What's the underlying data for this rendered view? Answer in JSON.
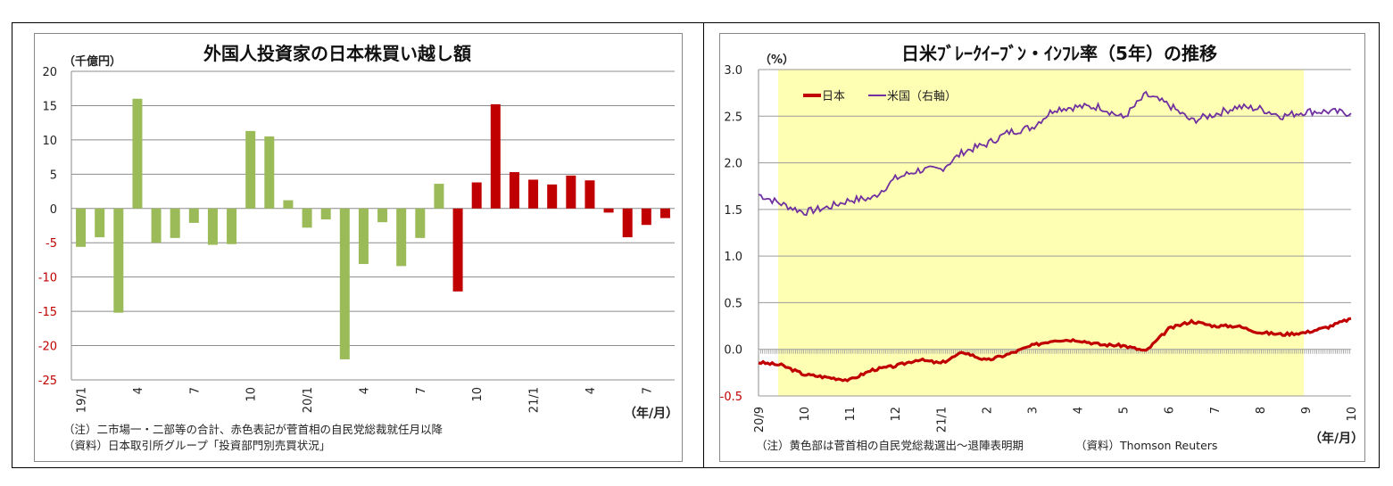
{
  "chart_data": [
    {
      "type": "bar",
      "title": "外国人投資家の日本株買い越し額",
      "ylabel": "（千億円）",
      "xlabel": "（年/月）",
      "ylim": [
        -25,
        20
      ],
      "yticks": [
        20,
        15,
        10,
        5,
        0,
        -5,
        -10,
        -15,
        -20,
        -25
      ],
      "grid": true,
      "xtick_labels": [
        "19/1",
        "4",
        "7",
        "10",
        "20/1",
        "4",
        "7",
        "10",
        "21/1",
        "4",
        "7"
      ],
      "categories": [
        "19/1",
        "19/2",
        "19/3",
        "19/4",
        "19/5",
        "19/6",
        "19/7",
        "19/8",
        "19/9",
        "19/10",
        "19/11",
        "19/12",
        "20/1",
        "20/2",
        "20/3",
        "20/4",
        "20/5",
        "20/6",
        "20/7",
        "20/8",
        "20/9",
        "20/10",
        "20/11",
        "20/12",
        "21/1",
        "21/2",
        "21/3",
        "21/4",
        "21/5",
        "21/6",
        "21/7",
        "21/8"
      ],
      "values": [
        -5.6,
        -4.2,
        -15.2,
        16.0,
        -5.0,
        -4.3,
        -2.1,
        -5.3,
        -5.2,
        11.3,
        10.5,
        1.2,
        -2.8,
        -1.6,
        -22.0,
        -8.1,
        -2.0,
        -8.4,
        -4.3,
        3.6,
        -12.1,
        3.8,
        15.2,
        5.3,
        4.2,
        3.5,
        4.8,
        4.1,
        -0.6,
        -4.2,
        -2.4,
        -1.4
      ],
      "colors": {
        "before": "#9bbb59",
        "after": "#c00000"
      },
      "highlight_start_index": 20,
      "notes": [
        "（注）二市場一・二部等の合計、赤色表記が菅首相の自民党総裁就任月以降",
        "（資料）日本取引所グループ「投資部門別売買状況」"
      ]
    },
    {
      "type": "line",
      "title": "日米ﾌﾞﾚｰｸｲｰﾌﾞﾝ・ｲﾝﾌﾚ率（5年）の推移",
      "ylabel": "（%）",
      "xlabel": "（年/月）",
      "ylim": [
        -0.5,
        3.0
      ],
      "yticks": [
        "3.0",
        "2.5",
        "2.0",
        "1.5",
        "1.0",
        "0.5",
        "0.0",
        "-0.5"
      ],
      "grid": true,
      "xtick_labels": [
        "20/9",
        "10",
        "11",
        "12",
        "21/1",
        "2",
        "3",
        "4",
        "5",
        "6",
        "7",
        "8",
        "9",
        "10"
      ],
      "legend": [
        "日本",
        "米国（右軸）"
      ],
      "legend_position": "top-left",
      "shaded_region": {
        "from": "20/9 mid",
        "to": "21/9 early",
        "color": "#ffffb3"
      },
      "series": [
        {
          "name": "日本",
          "color": "#c00000",
          "x": [
            "20/9",
            "20/9m",
            "10",
            "10m",
            "11",
            "11m",
            "12",
            "12m",
            "21/1",
            "21/1m",
            "2",
            "2m",
            "3",
            "3m",
            "4",
            "4m",
            "5",
            "5m",
            "6",
            "6m",
            "7",
            "7m",
            "8",
            "8m",
            "9",
            "9m",
            "10"
          ],
          "values": [
            -0.14,
            -0.17,
            -0.27,
            -0.3,
            -0.33,
            -0.22,
            -0.18,
            -0.11,
            -0.15,
            -0.03,
            -0.12,
            -0.05,
            0.04,
            0.1,
            0.1,
            0.05,
            0.04,
            -0.02,
            0.22,
            0.3,
            0.25,
            0.25,
            0.18,
            0.16,
            0.18,
            0.24,
            0.33
          ]
        },
        {
          "name": "米国（右軸）",
          "color": "#7030a0",
          "x": [
            "20/9",
            "20/9m",
            "10",
            "10m",
            "11",
            "11m",
            "12",
            "12m",
            "21/1",
            "21/1m",
            "2",
            "2m",
            "3",
            "3m",
            "4",
            "4m",
            "5",
            "5m",
            "6",
            "6m",
            "7",
            "7m",
            "8",
            "8m",
            "9",
            "9m",
            "10"
          ],
          "values": [
            1.66,
            1.56,
            1.47,
            1.52,
            1.6,
            1.62,
            1.83,
            1.92,
            1.93,
            2.12,
            2.2,
            2.33,
            2.38,
            2.58,
            2.6,
            2.6,
            2.48,
            2.73,
            2.62,
            2.45,
            2.52,
            2.6,
            2.58,
            2.5,
            2.55,
            2.55,
            2.53
          ]
        }
      ],
      "notes": [
        "（注）黄色部は菅首相の自民党総裁選出～退陣表明期",
        "（資料）Thomson Reuters"
      ]
    }
  ]
}
